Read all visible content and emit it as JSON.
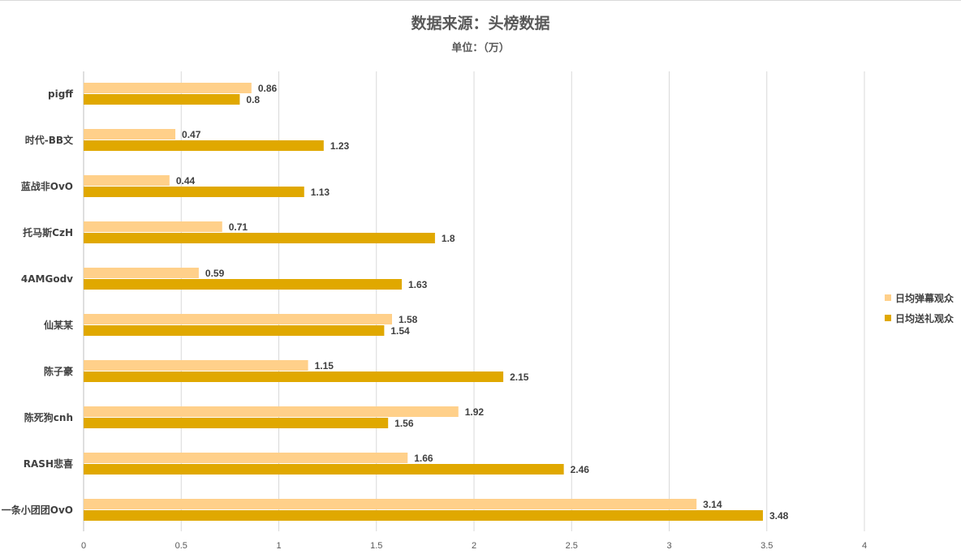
{
  "title": "数据来源：头榜数据",
  "subtitle": "单位：（万）",
  "chart_data": {
    "type": "bar",
    "orientation": "horizontal",
    "categories": [
      "pigff",
      "时代-BB文",
      "蓝战非OvO",
      "托马斯CzH",
      "4AMGodv",
      "仙某某",
      "陈子豪",
      "陈死狗cnh",
      "RASH悲喜",
      "一条小团团OvO"
    ],
    "series": [
      {
        "name": "日均弹幕观众",
        "color": "#FFD08A",
        "values": [
          0.86,
          0.47,
          0.44,
          0.71,
          0.59,
          1.58,
          1.15,
          1.92,
          1.66,
          3.14
        ]
      },
      {
        "name": "日均送礼观众",
        "color": "#E0A800",
        "values": [
          0.8,
          1.23,
          1.13,
          1.8,
          1.63,
          1.54,
          2.15,
          1.56,
          2.46,
          3.48
        ]
      }
    ],
    "xlim": [
      0,
      4
    ],
    "ticks": [
      "0",
      "0.5",
      "1",
      "1.5",
      "2",
      "2.5",
      "3",
      "3.5",
      "4"
    ],
    "grid": true,
    "legend": "right"
  }
}
